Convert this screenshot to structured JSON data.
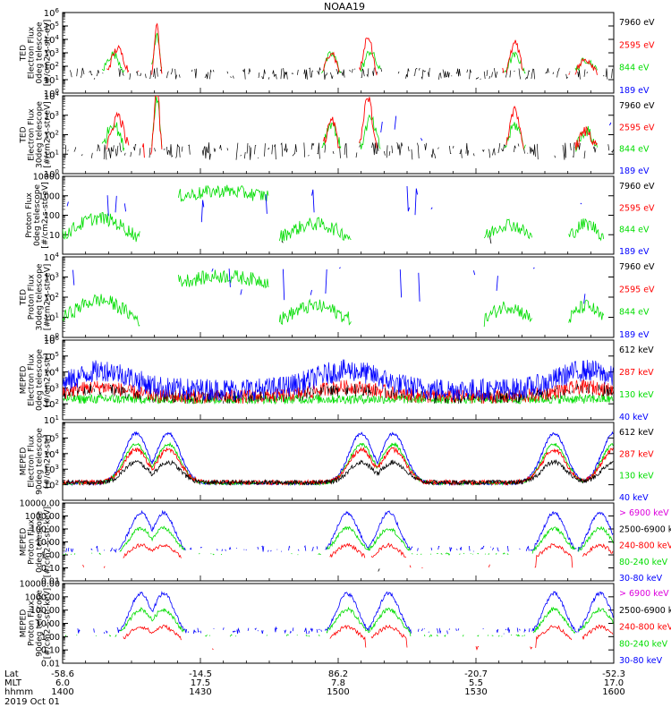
{
  "title": "NOAA19",
  "colors": {
    "black": "#000000",
    "red": "#ff0000",
    "green": "#00dd00",
    "blue": "#0000ff",
    "magenta": "#dd00dd"
  },
  "chart_data": {
    "type": "line",
    "xrange_minutes": [
      0,
      120
    ],
    "xticks": [
      {
        "minute": 0,
        "lat": "-58.6",
        "mlt": "6.0",
        "hhmm": "1400"
      },
      {
        "minute": 30,
        "lat": "-14.5",
        "mlt": "17.5",
        "hhmm": "1430"
      },
      {
        "minute": 60,
        "lat": "86.2",
        "mlt": "7.8",
        "hhmm": "1500"
      },
      {
        "minute": 90,
        "lat": "-20.7",
        "mlt": "5.5",
        "hhmm": "1530"
      },
      {
        "minute": 120,
        "lat": "-52.3",
        "mlt": "17.0",
        "hhmm": "1600"
      }
    ],
    "axis_row_labels": [
      "Lat",
      "MLT",
      "hhmm"
    ],
    "date_label": "2019 Oct 01",
    "panels": [
      {
        "ylabel_lines": [
          "TED",
          "Electron Flux",
          "0deg telescope",
          "[#/cm2-s-str-eV]"
        ],
        "yscale": "log",
        "yrange_exp": [
          0,
          6
        ],
        "tick_style": "exp",
        "tick_exps": [
          0,
          1,
          2,
          3,
          4,
          5,
          6
        ],
        "legend": [
          {
            "label": "7960 eV",
            "color": "#000000"
          },
          {
            "label": "2595 eV",
            "color": "#ff0000"
          },
          {
            "label": "844 eV",
            "color": "#00dd00"
          },
          {
            "label": "189 eV",
            "color": "#0000ff"
          }
        ]
      },
      {
        "ylabel_lines": [
          "TED",
          "Electron Flux",
          "30deg telescope",
          "[#/cm2-s-str-eV]"
        ],
        "yscale": "log",
        "yrange_exp": [
          0,
          4
        ],
        "tick_style": "exp",
        "tick_exps": [
          0,
          1,
          2,
          3,
          4
        ],
        "legend": [
          {
            "label": "7960 eV",
            "color": "#000000"
          },
          {
            "label": "2595 eV",
            "color": "#ff0000"
          },
          {
            "label": "844 eV",
            "color": "#00dd00"
          },
          {
            "label": "189 eV",
            "color": "#0000ff"
          }
        ]
      },
      {
        "ylabel_lines": [
          "Proton Flux",
          "0deg telescope",
          "[#/cm2-s-str-eV]"
        ],
        "yscale": "log",
        "yrange_exp": [
          0,
          4
        ],
        "tick_style": "plain",
        "tick_exps": [
          1,
          2,
          3,
          4
        ],
        "tick_texts": [
          "10",
          "100",
          "1000",
          "10000"
        ],
        "legend": [
          {
            "label": "7960 eV",
            "color": "#000000"
          },
          {
            "label": "2595 eV",
            "color": "#ff0000"
          },
          {
            "label": "844 eV",
            "color": "#00dd00"
          },
          {
            "label": "189 eV",
            "color": "#0000ff"
          }
        ]
      },
      {
        "ylabel_lines": [
          "TED",
          "Proton Flux",
          "30deg telescope",
          "[#/cm2-s-str-eV]"
        ],
        "yscale": "log",
        "yrange_exp": [
          0,
          4
        ],
        "tick_style": "exp",
        "tick_exps": [
          0,
          1,
          2,
          3,
          4
        ],
        "legend": [
          {
            "label": "7960 eV",
            "color": "#000000"
          },
          {
            "label": "2595 eV",
            "color": "#ff0000"
          },
          {
            "label": "844 eV",
            "color": "#00dd00"
          },
          {
            "label": "189 eV",
            "color": "#0000ff"
          }
        ]
      },
      {
        "ylabel_lines": [
          "MEPED",
          "Electron Flux",
          "0deg telescope",
          "[#/cm2-s-str]"
        ],
        "yscale": "log",
        "yrange_exp": [
          1,
          6
        ],
        "tick_style": "exp",
        "tick_exps": [
          1,
          2,
          3,
          4,
          5,
          6
        ],
        "legend": [
          {
            "label": "612 keV",
            "color": "#000000"
          },
          {
            "label": "287 keV",
            "color": "#ff0000"
          },
          {
            "label": "130 keV",
            "color": "#00dd00"
          },
          {
            "label": "40 keV",
            "color": "#0000ff"
          }
        ]
      },
      {
        "ylabel_lines": [
          "MEPED",
          "Electron Flux",
          "90deg telescope",
          "[#/cm2-s-str]"
        ],
        "yscale": "log",
        "yrange_exp": [
          1,
          6
        ],
        "tick_style": "exp",
        "tick_exps": [
          2,
          3,
          4,
          5
        ],
        "legend": [
          {
            "label": "612 keV",
            "color": "#000000"
          },
          {
            "label": "287 keV",
            "color": "#ff0000"
          },
          {
            "label": "130 keV",
            "color": "#00dd00"
          },
          {
            "label": "40 keV",
            "color": "#0000ff"
          }
        ]
      },
      {
        "ylabel_lines": [
          "MEPED",
          "Proton Flux",
          "0deg telescope",
          "[#/cm2-s-str-keV]"
        ],
        "yscale": "log",
        "yrange_exp": [
          -2,
          4
        ],
        "tick_style": "plain",
        "tick_exps": [
          -2,
          -1,
          0,
          1,
          2,
          3,
          4
        ],
        "tick_texts": [
          "0.01",
          "0.10",
          "1.00",
          "10.00",
          "100.00",
          "1000.00",
          "10000.00"
        ],
        "legend": [
          {
            "label": "> 6900 keV",
            "color": "#dd00dd"
          },
          {
            "label": "2500-6900 keV",
            "color": "#000000"
          },
          {
            "label": "240-800 keV",
            "color": "#ff0000"
          },
          {
            "label": "80-240 keV",
            "color": "#00dd00"
          },
          {
            "label": "30-80 keV",
            "color": "#0000ff"
          }
        ]
      },
      {
        "ylabel_lines": [
          "MEPED",
          "Proton Flux",
          "90deg telescope",
          "[#/cm2-s-str-keV]"
        ],
        "yscale": "log",
        "yrange_exp": [
          -2,
          4
        ],
        "tick_style": "plain",
        "tick_exps": [
          -2,
          -1,
          0,
          1,
          2,
          3,
          4
        ],
        "tick_texts": [
          "0.01",
          "0.10",
          "1.00",
          "10.00",
          "100.00",
          "1000.00",
          "10000.00"
        ],
        "legend": [
          {
            "label": "> 6900 keV",
            "color": "#dd00dd"
          },
          {
            "label": "2500-6900 keV",
            "color": "#000000"
          },
          {
            "label": "240-800 keV",
            "color": "#ff0000"
          },
          {
            "label": "80-240 keV",
            "color": "#00dd00"
          },
          {
            "label": "30-80 keV",
            "color": "#0000ff"
          }
        ]
      }
    ]
  }
}
